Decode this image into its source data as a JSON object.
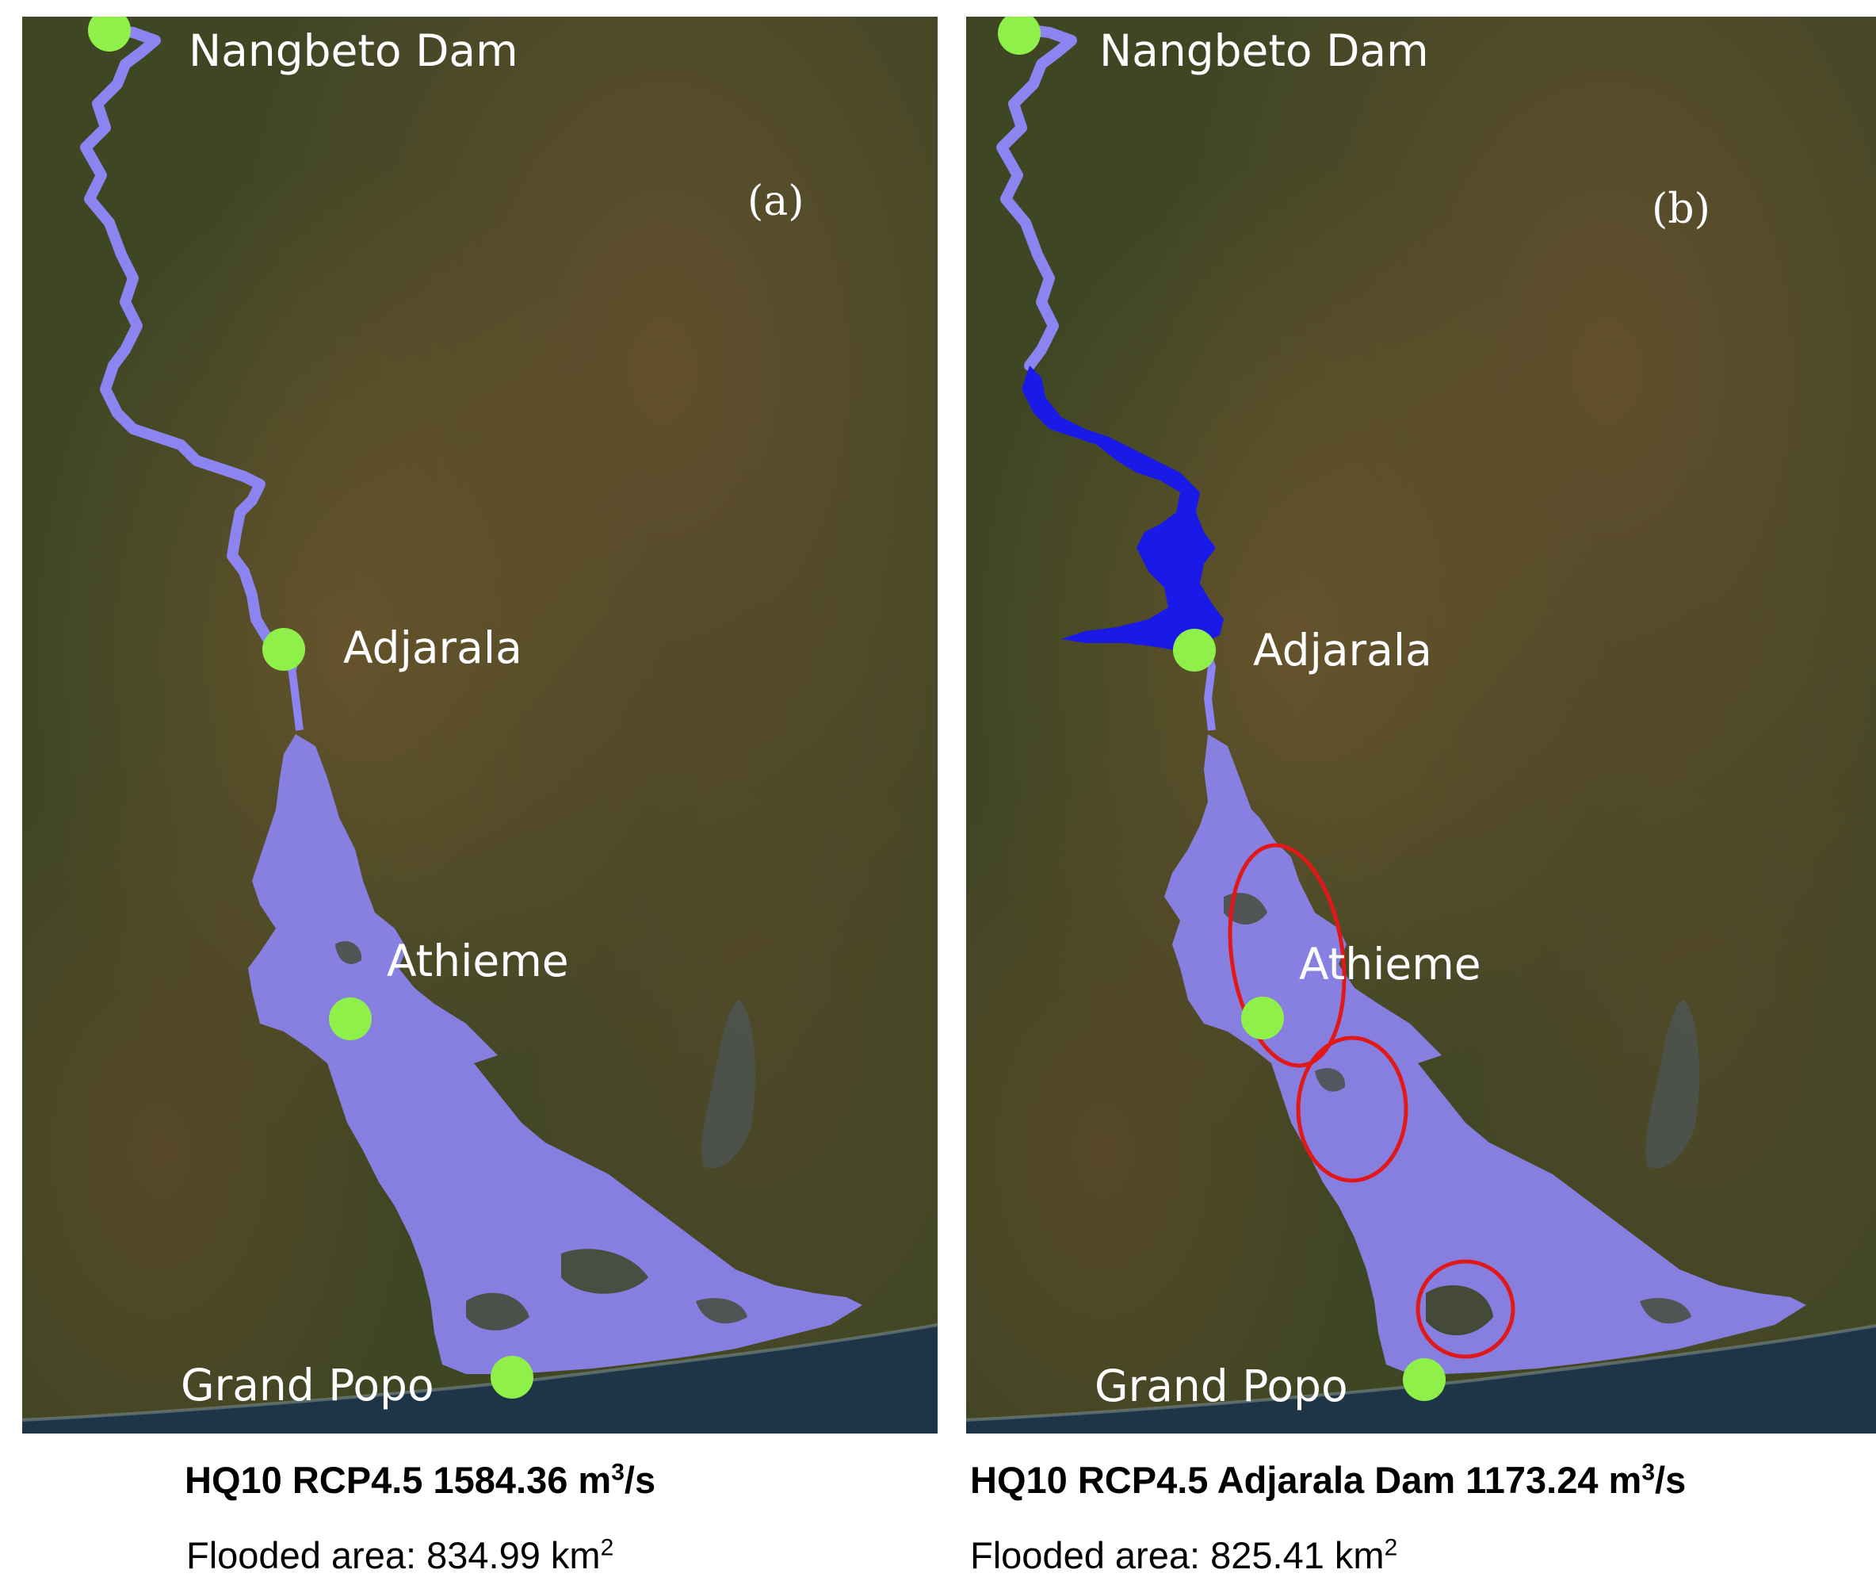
{
  "panels": [
    {
      "letter": "(a)",
      "places": [
        "Nangbeto Dam",
        "Adjarala",
        "Athieme",
        "Grand Popo"
      ],
      "title": "HQ10 RCP4.5 1584.36 m",
      "title_sup": "3",
      "title_suffix": "/s",
      "area_label": "Flooded area: 834.99 km",
      "area_sup": "2"
    },
    {
      "letter": "(b)",
      "places": [
        "Nangbeto Dam",
        "Adjarala",
        "Athieme",
        "Grand Popo"
      ],
      "title": "HQ10 RCP4.5 Adjarala Dam 1173.24 m",
      "title_sup": "3",
      "title_suffix": "/s",
      "area_label": "Flooded area: 825.41 km",
      "area_sup": "2"
    }
  ],
  "colors": {
    "flood": "#8c84f0",
    "reservoir": "#1a1ae8",
    "marker": "#8ff04a",
    "highlight_circle": "#e01818",
    "sea": "#1e3447"
  }
}
